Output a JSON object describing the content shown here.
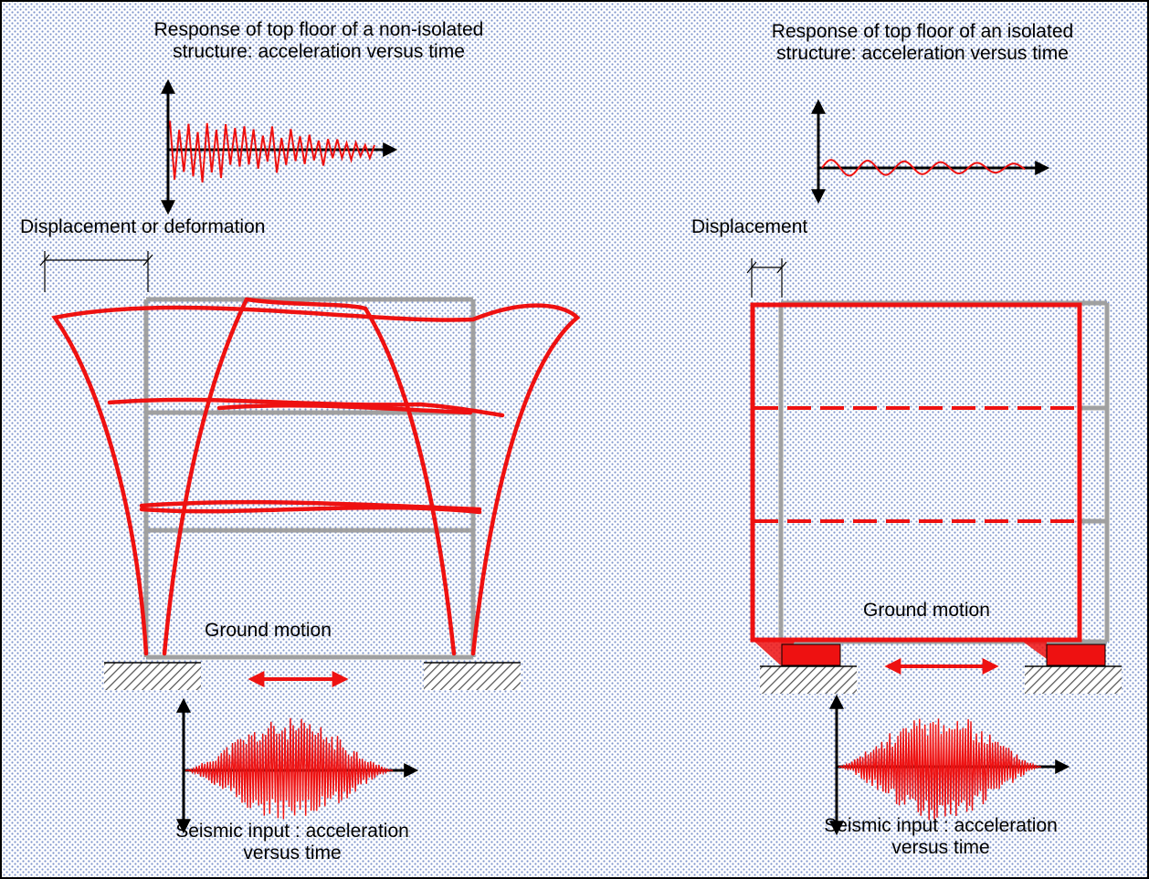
{
  "left": {
    "response_title_line1": "Response of top floor of a non-isolated",
    "response_title_line2": "structure: acceleration versus time",
    "displacement_label": "Displacement or deformation",
    "ground_motion_label": "Ground motion",
    "seismic_input_line1": "Seismic input : acceleration",
    "seismic_input_line2": "versus time"
  },
  "right": {
    "response_title_line1": "Response of top floor of an isolated",
    "response_title_line2": "structure: acceleration versus time",
    "displacement_label": "Displacement",
    "ground_motion_label": "Ground motion",
    "seismic_input_line1": "Seismic input : acceleration",
    "seismic_input_line2": "versus time"
  },
  "colors": {
    "background_dots": "#7f95cc",
    "deformed_frame": "#ee1111",
    "undeformed_frame": "#a0a0a0",
    "isolator": "#ee1111",
    "ground_hatch": "#555555"
  }
}
